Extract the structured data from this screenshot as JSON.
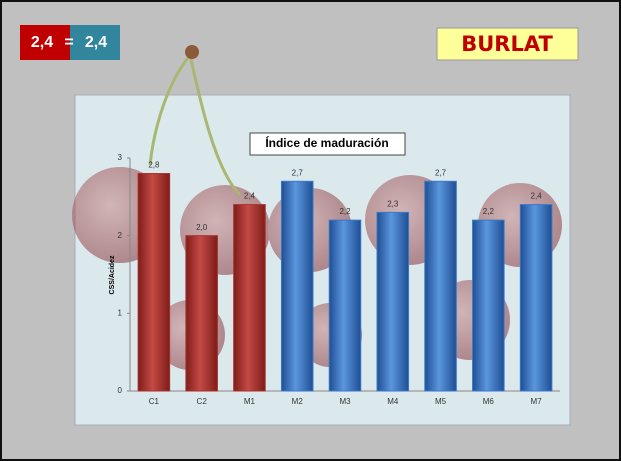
{
  "badge": {
    "left": "2,4",
    "sep": "=",
    "right": "2,4"
  },
  "header": {
    "title": "BURLAT"
  },
  "chart_data": {
    "type": "bar",
    "title": "Índice de maduración",
    "y_label": "CSS/Acidez",
    "categories": [
      "C1",
      "C2",
      "M1",
      "M2",
      "M3",
      "M4",
      "M5",
      "M6",
      "M7"
    ],
    "values": [
      2.8,
      2.0,
      2.4,
      2.7,
      2.2,
      2.3,
      2.7,
      2.2,
      2.4
    ],
    "value_labels": [
      "2,8",
      "2,0",
      "2,4",
      "2,7",
      "2,2",
      "2,3",
      "2,7",
      "2,2",
      "2,4"
    ],
    "colors": [
      "#a8302c",
      "#a8302c",
      "#a8302c",
      "#3a78c9",
      "#3a78c9",
      "#3a78c9",
      "#3a78c9",
      "#3a78c9",
      "#3a78c9"
    ],
    "ylim": [
      0,
      3
    ],
    "yticks": [
      0,
      1,
      2,
      3
    ]
  }
}
